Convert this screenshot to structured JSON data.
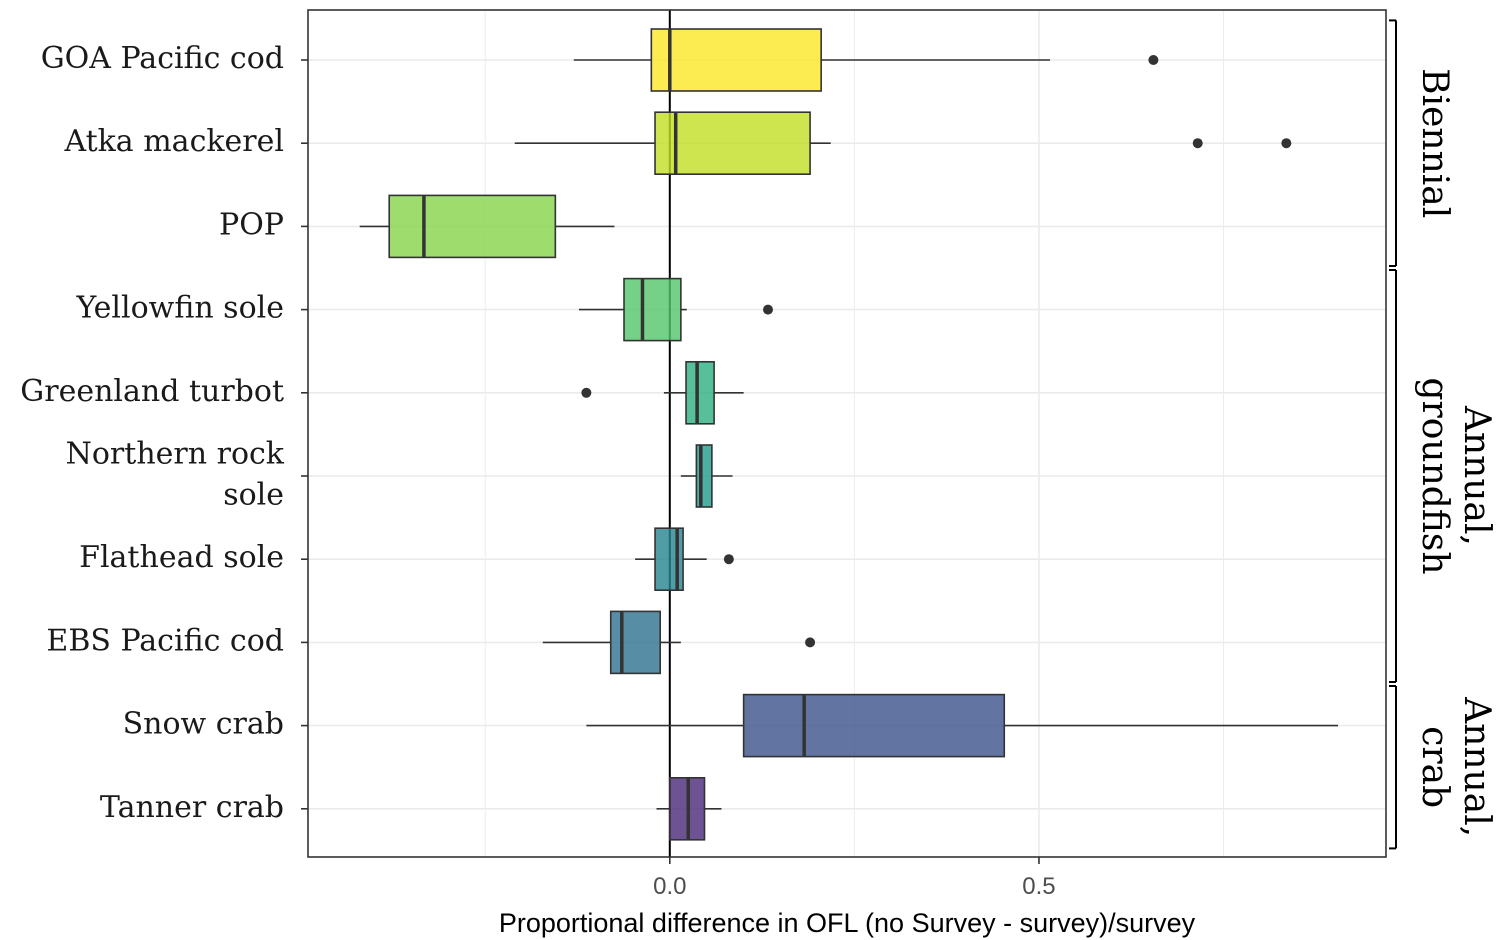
{
  "chart_data": {
    "type": "boxplot",
    "orientation": "horizontal",
    "xlabel": "Proportional difference in OFL (no Survey - survey)/survey",
    "xlim": [
      -0.49,
      0.97
    ],
    "xticks": [
      0.0,
      0.5
    ],
    "xtick_labels": [
      "0.0",
      "0.5"
    ],
    "grid": true,
    "reference_line_x": 0,
    "categories": [
      "GOA Pacific cod",
      "Atka mackerel",
      "POP",
      "Yellowfin sole",
      "Greenland turbot",
      "Northern rock sole",
      "Flathead sole",
      "EBS Pacific cod",
      "Snow crab",
      "Tanner crab"
    ],
    "category_label_lines": [
      [
        "GOA Pacific cod"
      ],
      [
        "Atka mackerel"
      ],
      [
        "POP"
      ],
      [
        "Yellowfin sole"
      ],
      [
        "Greenland turbot"
      ],
      [
        "Northern rock",
        "sole"
      ],
      [
        "Flathead sole"
      ],
      [
        "EBS Pacific cod"
      ],
      [
        "Snow crab"
      ],
      [
        "Tanner crab"
      ]
    ],
    "boxes": [
      {
        "min": -0.13,
        "q1": -0.025,
        "median": 0.0,
        "q3": 0.205,
        "max": 0.515,
        "outliers": [
          0.655
        ],
        "color": "#FDE725"
      },
      {
        "min": -0.21,
        "q1": -0.02,
        "median": 0.008,
        "q3": 0.19,
        "max": 0.218,
        "outliers": [
          0.715,
          0.835
        ],
        "color": "#C2DF23"
      },
      {
        "min": -0.42,
        "q1": -0.38,
        "median": -0.333,
        "q3": -0.155,
        "max": -0.075,
        "outliers": [],
        "color": "#86D549"
      },
      {
        "min": -0.123,
        "q1": -0.062,
        "median": -0.037,
        "q3": 0.015,
        "max": 0.023,
        "outliers": [
          0.133
        ],
        "color": "#52C569"
      },
      {
        "min": -0.008,
        "q1": 0.022,
        "median": 0.037,
        "q3": 0.06,
        "max": 0.1,
        "outliers": [
          -0.113
        ],
        "color": "#2AB07F"
      },
      {
        "min": 0.015,
        "q1": 0.036,
        "median": 0.042,
        "q3": 0.057,
        "max": 0.085,
        "outliers": [],
        "color": "#1E9B8A"
      },
      {
        "min": -0.047,
        "q1": -0.02,
        "median": 0.01,
        "q3": 0.018,
        "max": 0.05,
        "outliers": [
          0.08
        ],
        "color": "#25858E"
      },
      {
        "min": -0.172,
        "q1": -0.08,
        "median": -0.065,
        "q3": -0.013,
        "max": 0.015,
        "outliers": [
          0.19
        ],
        "color": "#2D708E"
      },
      {
        "min": -0.113,
        "q1": 0.1,
        "median": 0.182,
        "q3": 0.453,
        "max": 0.905,
        "outliers": [],
        "color": "#3B528B"
      },
      {
        "min": -0.018,
        "q1": 0.0,
        "median": 0.025,
        "q3": 0.047,
        "max": 0.07,
        "outliers": [],
        "color": "#482878"
      }
    ],
    "groups": [
      {
        "label": "Biennial",
        "label_lines": [
          "Biennial"
        ],
        "first": 0,
        "last": 2
      },
      {
        "label": "Annual, groundfish",
        "label_lines": [
          "Annual,",
          "groundfish"
        ],
        "first": 3,
        "last": 7
      },
      {
        "label": "Annual, crab",
        "label_lines": [
          "Annual,",
          "crab"
        ],
        "first": 8,
        "last": 9
      }
    ]
  },
  "colors": {
    "panel_border": "#333333",
    "grid": "#EBEBEB",
    "whisker": "#333333",
    "outlier": "#333333",
    "ref_line": "#000000"
  }
}
